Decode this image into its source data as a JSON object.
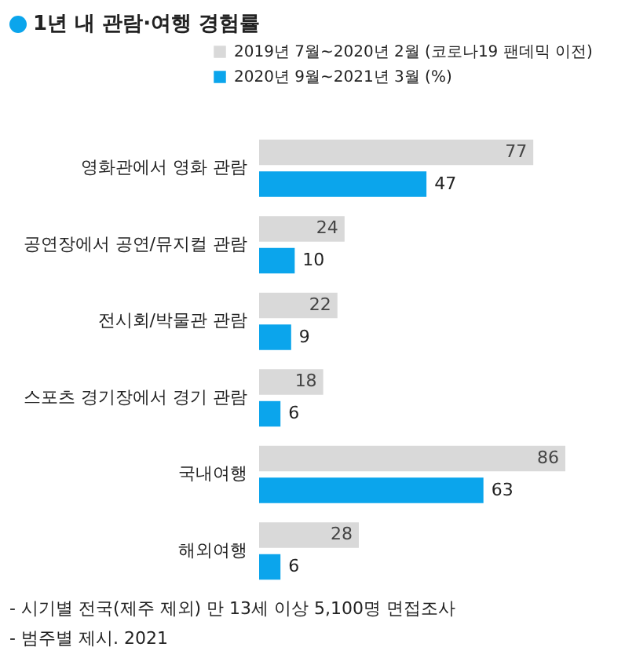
{
  "chart_data": {
    "type": "bar",
    "orientation": "horizontal",
    "title": "1년 내 관람·여행 경험률",
    "categories": [
      "영화관에서 영화 관람",
      "공연장에서 공연/뮤지컬 관람",
      "전시회/박물관 관람",
      "스포츠 경기장에서 경기 관람",
      "국내여행",
      "해외여행"
    ],
    "series": [
      {
        "name": "2019년 7월~2020년 2월 (코로나19 팬데믹 이전)",
        "color": "#d9d9d9",
        "values": [
          77,
          24,
          22,
          18,
          86,
          28
        ]
      },
      {
        "name": "2020년 9월~2021년 3월 (%)",
        "color": "#0ba5ec",
        "values": [
          47,
          10,
          9,
          6,
          63,
          6
        ]
      }
    ],
    "data_labels": true,
    "legend": "top right",
    "annotations": [
      "- 시기별 전국(제주 제외) 만 13세 이상 5,100명 면접조사",
      "- 범주별 제시. 2021"
    ]
  }
}
